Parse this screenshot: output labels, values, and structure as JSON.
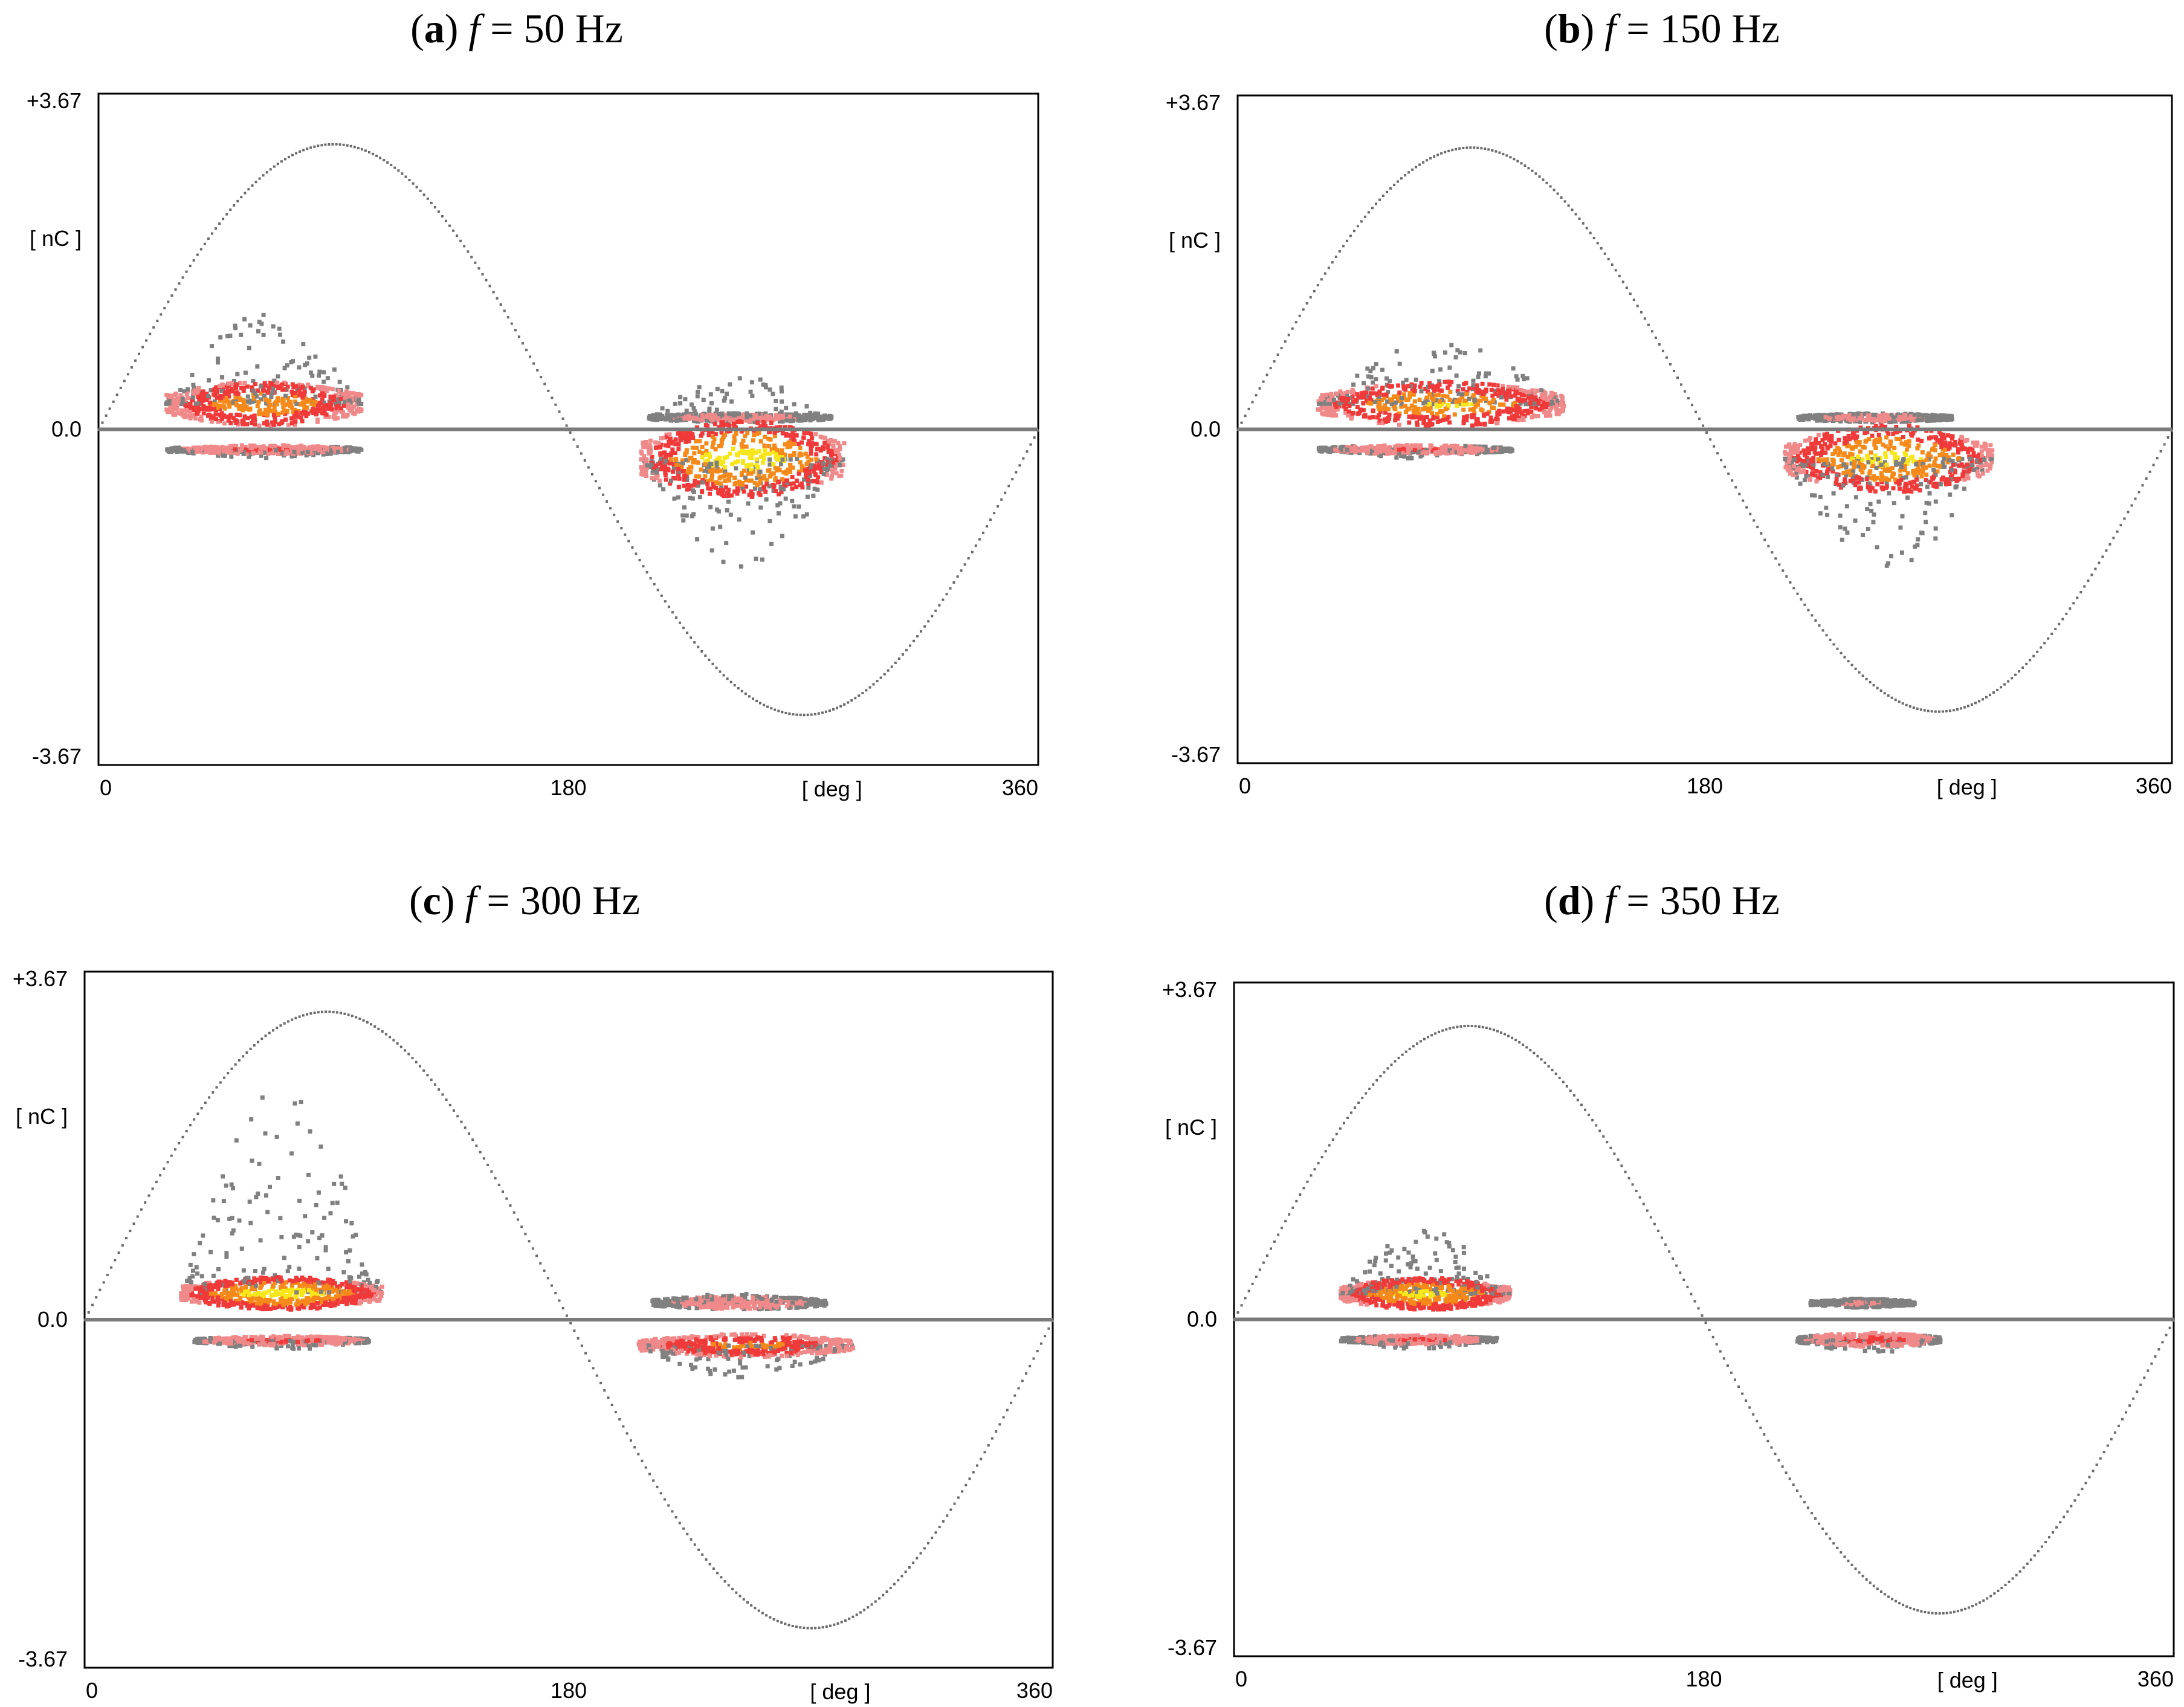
{
  "figure": {
    "description_free": true
  },
  "chart_data": [
    {
      "id": "a",
      "type": "scatter",
      "panel_label": "a",
      "caption_var": "f",
      "caption_value": "= 50 Hz",
      "title": "(a) f = 50 Hz",
      "xlabel": "[ deg ]",
      "ylabel": "[ nC ]",
      "xlim": [
        0,
        360
      ],
      "ylim": [
        -3.67,
        3.67
      ],
      "x_ticks": [
        "0",
        "180",
        "360"
      ],
      "y_ticks": [
        "+3.67",
        "0.0",
        "-3.67"
      ],
      "sine_amplitude": 3.12,
      "clusters": [
        {
          "x": [
            25,
            100
          ],
          "y": [
            0.1,
            0.6
          ],
          "peak": 0.3,
          "intensity": 0.85,
          "scatter_top": 1.3
        },
        {
          "x": [
            25,
            100
          ],
          "y": [
            -0.25,
            -0.15
          ],
          "peak": -0.2,
          "intensity": 0.5,
          "scatter_top": -0.3
        },
        {
          "x": [
            210,
            280
          ],
          "y": [
            0.1,
            0.2
          ],
          "peak": 0.15,
          "intensity": 0.4,
          "scatter_top": 0.6
        },
        {
          "x": [
            207,
            285
          ],
          "y": [
            -1.0,
            -0.15
          ],
          "peak": -0.3,
          "intensity": 1.0,
          "scatter_top": -1.5
        }
      ]
    },
    {
      "id": "b",
      "type": "scatter",
      "panel_label": "b",
      "caption_var": "f",
      "caption_value": "= 150 Hz",
      "title": "(b) f = 150 Hz",
      "xlabel": "[ deg ]",
      "ylabel": "[ nC ]",
      "xlim": [
        0,
        360
      ],
      "ylim": [
        -3.67,
        3.67
      ],
      "x_ticks": [
        "0",
        "180",
        "360"
      ],
      "y_ticks": [
        "+3.67",
        "0.0",
        "-3.67"
      ],
      "sine_amplitude": 3.1,
      "clusters": [
        {
          "x": [
            30,
            125
          ],
          "y": [
            0.1,
            0.6
          ],
          "peak": 0.3,
          "intensity": 0.9,
          "scatter_top": 1.0
        },
        {
          "x": [
            30,
            105
          ],
          "y": [
            -0.25,
            -0.15
          ],
          "peak": -0.2,
          "intensity": 0.5,
          "scatter_top": -0.3
        },
        {
          "x": [
            215,
            275
          ],
          "y": [
            0.1,
            0.2
          ],
          "peak": 0.15,
          "intensity": 0.4,
          "scatter_top": 0.2
        },
        {
          "x": [
            210,
            290
          ],
          "y": [
            -0.9,
            -0.15
          ],
          "peak": -0.3,
          "intensity": 0.95,
          "scatter_top": -1.5
        }
      ]
    },
    {
      "id": "c",
      "type": "scatter",
      "panel_label": "c",
      "caption_var": "f",
      "caption_value": "= 300 Hz",
      "title": "(c) f = 300 Hz",
      "xlabel": "[ deg ]",
      "ylabel": "[ nC ]",
      "xlim": [
        0,
        360
      ],
      "ylim": [
        -3.67,
        3.67
      ],
      "x_ticks": [
        "0",
        "180",
        "360"
      ],
      "y_ticks": [
        "+3.67",
        "0.0",
        "-3.67"
      ],
      "sine_amplitude": 3.25,
      "clusters": [
        {
          "x": [
            35,
            110
          ],
          "y": [
            0.15,
            0.5
          ],
          "peak": 0.3,
          "intensity": 1.0,
          "scatter_top": 2.5
        },
        {
          "x": [
            40,
            105
          ],
          "y": [
            -0.25,
            -0.15
          ],
          "peak": -0.2,
          "intensity": 0.55,
          "scatter_top": -0.3
        },
        {
          "x": [
            210,
            275
          ],
          "y": [
            0.1,
            0.25
          ],
          "peak": 0.2,
          "intensity": 0.45,
          "scatter_top": 0.3
        },
        {
          "x": [
            205,
            285
          ],
          "y": [
            -0.4,
            -0.15
          ],
          "peak": -0.25,
          "intensity": 0.75,
          "scatter_top": -0.6
        }
      ]
    },
    {
      "id": "d",
      "type": "scatter",
      "panel_label": "d",
      "caption_var": "f",
      "caption_value": "= 350 Hz",
      "title": "(d) f = 350 Hz",
      "xlabel": "[ deg ]",
      "ylabel": "[ nC ]",
      "xlim": [
        0,
        360
      ],
      "ylim": [
        -3.67,
        3.67
      ],
      "x_ticks": [
        "0",
        "180",
        "360"
      ],
      "y_ticks": [
        "+3.67",
        "0.0",
        "-3.67"
      ],
      "sine_amplitude": 3.2,
      "clusters": [
        {
          "x": [
            40,
            105
          ],
          "y": [
            0.15,
            0.5
          ],
          "peak": 0.3,
          "intensity": 0.95,
          "scatter_top": 1.0
        },
        {
          "x": [
            40,
            100
          ],
          "y": [
            -0.25,
            -0.15
          ],
          "peak": -0.2,
          "intensity": 0.5,
          "scatter_top": -0.3
        },
        {
          "x": [
            220,
            260
          ],
          "y": [
            0.1,
            0.2
          ],
          "peak": 0.2,
          "intensity": 0.3,
          "scatter_top": 0.25
        },
        {
          "x": [
            215,
            270
          ],
          "y": [
            -0.3,
            -0.15
          ],
          "peak": -0.2,
          "intensity": 0.55,
          "scatter_top": -0.35
        }
      ]
    }
  ]
}
